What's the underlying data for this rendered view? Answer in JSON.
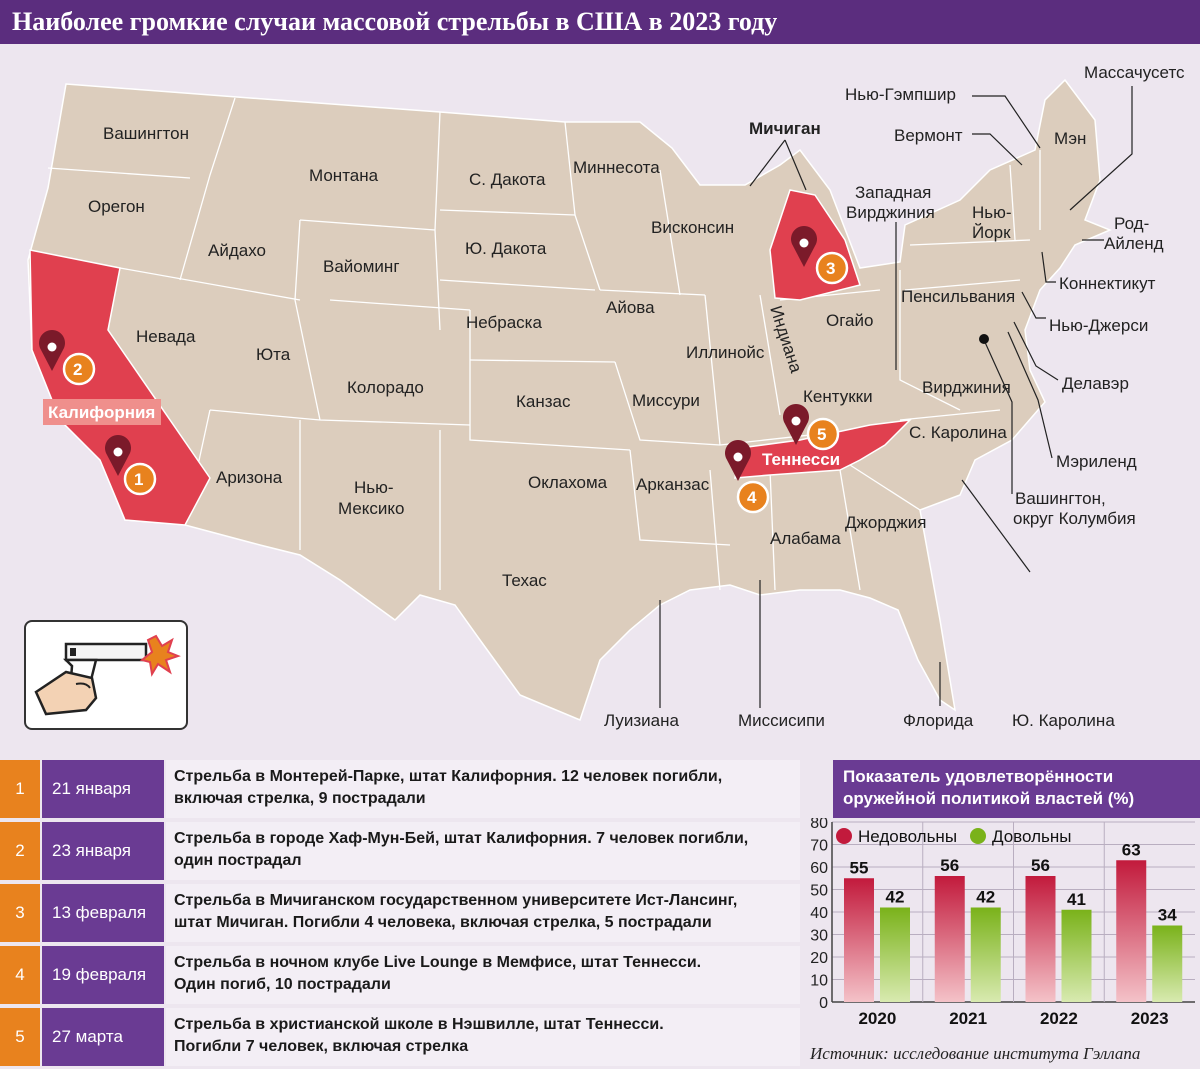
{
  "title": "Наиболее громкие случаи массовой стрельбы в США в 2023 году",
  "colors": {
    "header": "#5b2d7e",
    "land": "#dccdbd",
    "highlight": "#e0404f",
    "pin": "#7b1a2a",
    "badge": "#e8821e",
    "row_date": "#6a3b93",
    "unsatisfied": "#c21a3c",
    "satisfied": "#7ab21a"
  },
  "map": {
    "states": {
      "washington": "Вашингтон",
      "oregon": "Орегон",
      "idaho": "Айдахо",
      "montana": "Монтана",
      "wyoming": "Вайоминг",
      "nevada": "Невада",
      "utah": "Юта",
      "colorado": "Колорадо",
      "arizona": "Аризона",
      "new_mexico_1": "Нью-",
      "new_mexico_2": "Мексико",
      "north_dakota": "С. Дакота",
      "south_dakota": "Ю. Дакота",
      "nebraska": "Небраска",
      "kansas": "Канзас",
      "oklahoma": "Оклахома",
      "texas": "Техас",
      "minnesota": "Миннесота",
      "iowa": "Айова",
      "missouri": "Миссури",
      "arkansas": "Арканзас",
      "louisiana": "Луизиана",
      "wisconsin": "Висконсин",
      "illinois": "Иллинойс",
      "michigan": "Мичиган",
      "indiana": "Индиана",
      "ohio": "Огайо",
      "kentucky": "Кентукки",
      "tennessee": "Теннесси",
      "mississippi": "Миссисипи",
      "alabama": "Алабама",
      "georgia": "Джорджия",
      "florida": "Флорида",
      "south_carolina": "Ю. Каролина",
      "north_carolina": "С. Каролина",
      "virginia": "Вирджиния",
      "west_virginia_1": "Западная",
      "west_virginia_2": "Вирджиния",
      "pennsylvania": "Пенсильвания",
      "new_york_1": "Нью-",
      "new_york_2": "Йорк",
      "vermont": "Вермонт",
      "new_hampshire": "Нью-Гэмпшир",
      "maine": "Мэн",
      "massachusetts": "Массачусетс",
      "rhode_island_1": "Род-",
      "rhode_island_2": "Айленд",
      "connecticut": "Коннектикут",
      "new_jersey": "Нью-Джерси",
      "delaware": "Делавэр",
      "maryland": "Мэриленд",
      "dc_1": "Вашингтон,",
      "dc_2": "округ Колумбия",
      "california": "Калифорния"
    },
    "pins": [
      "1",
      "2",
      "3",
      "4",
      "5"
    ]
  },
  "events": [
    {
      "num": "1",
      "date": "21 января",
      "text_1": "Стрельба в Монтерей-Парке, штат Калифорния. 12 человек погибли,",
      "text_2": "включая стрелка, 9 пострадали"
    },
    {
      "num": "2",
      "date": "23 января",
      "text_1": "Стрельба в городе Хаф-Мун-Бей, штат Калифорния. 7 человек погибли,",
      "text_2": "один пострадал"
    },
    {
      "num": "3",
      "date": "13 февраля",
      "text_1": "Стрельба в Мичиганском государственном университете Ист-Лансинг,",
      "text_2": "штат Мичиган. Погибли 4 человека, включая стрелка, 5 пострадали"
    },
    {
      "num": "4",
      "date": "19 февраля",
      "text_1": "Стрельба в ночном клубе Live Lounge в Мемфисе, штат Теннесси.",
      "text_2": "Один погиб, 10 пострадали"
    },
    {
      "num": "5",
      "date": "27 марта",
      "text_1": "Стрельба в христианской школе в Нэшвилле, штат Теннесси.",
      "text_2": "Погибли 7 человек, включая стрелка"
    }
  ],
  "chart_data": {
    "type": "bar",
    "title_1": "Показатель удовлетворённости",
    "title_2": "оружейной политикой властей (%)",
    "categories": [
      "2020",
      "2021",
      "2022",
      "2023"
    ],
    "series": [
      {
        "name": "Недовольны",
        "values": [
          55,
          56,
          56,
          63
        ]
      },
      {
        "name": "Довольны",
        "values": [
          42,
          42,
          41,
          34
        ]
      }
    ],
    "ylim": [
      0,
      80
    ],
    "yticks": [
      "0",
      "10",
      "20",
      "30",
      "40",
      "50",
      "60",
      "70",
      "80"
    ],
    "legend": "top",
    "source": "Источник: исследование института Гэллапа"
  }
}
